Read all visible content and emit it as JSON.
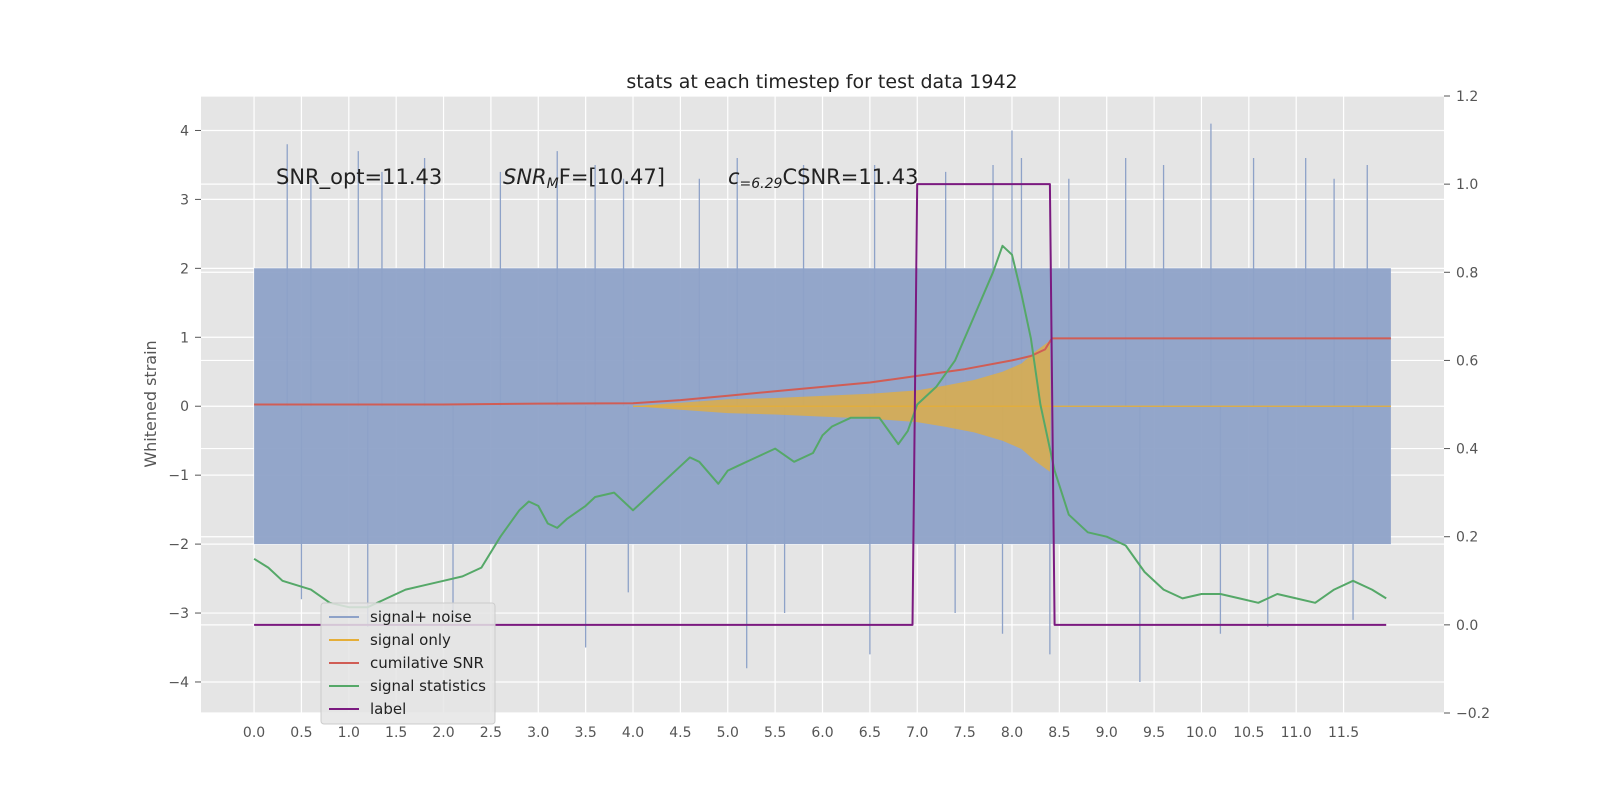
{
  "chart_data": {
    "type": "line",
    "title": "stats at each timestep for test data 1942",
    "xlabel": "",
    "ylabel": "Whitened strain",
    "y2label": "",
    "xlim": [
      -0.56,
      12.56
    ],
    "ylim": [
      -4.45,
      4.5
    ],
    "y2lim": [
      -0.2,
      1.2
    ],
    "xticks": [
      "0.0",
      "0.5",
      "1.0",
      "1.5",
      "2.0",
      "2.5",
      "3.0",
      "3.5",
      "4.0",
      "4.5",
      "5.0",
      "5.5",
      "6.0",
      "6.5",
      "7.0",
      "7.5",
      "8.0",
      "8.5",
      "9.0",
      "9.5",
      "10.0",
      "10.5",
      "11.0",
      "11.5"
    ],
    "yticks": [
      "4",
      "3",
      "2",
      "1",
      "0",
      "−1",
      "−2",
      "−3",
      "−4"
    ],
    "y2ticks": [
      "1.2",
      "1.0",
      "0.8",
      "0.6",
      "0.4",
      "0.2",
      "0.0",
      "−0.2"
    ],
    "grid": true,
    "legend_position": "lower-left",
    "annotations": [
      "SNR_opt=11.43",
      "SNR",
      "M",
      "F=[10.47]",
      "c",
      "=6.29",
      "CSNR=11.43"
    ],
    "series": [
      {
        "name": "signal+ noise",
        "color": "#8ea2c8",
        "envelope": {
          "x": [
            0.0,
            12.0
          ],
          "upper": [
            2.0,
            2.0
          ],
          "lower": [
            -2.0,
            -2.0
          ]
        },
        "spikes_x": [
          0.35,
          0.6,
          1.1,
          1.35,
          1.8,
          2.6,
          3.2,
          3.6,
          3.9,
          4.7,
          5.1,
          5.8,
          6.55,
          7.3,
          7.8,
          8.0,
          8.1,
          8.6,
          9.2,
          9.6,
          10.1,
          10.55,
          11.1,
          11.4,
          11.75
        ],
        "spikes_y": [
          3.8,
          3.3,
          3.7,
          3.4,
          3.6,
          3.4,
          3.7,
          3.5,
          3.3,
          3.3,
          3.6,
          3.5,
          3.5,
          3.4,
          3.5,
          4.0,
          3.6,
          3.3,
          3.6,
          3.5,
          4.1,
          3.6,
          3.6,
          3.3,
          3.5
        ],
        "dips_x": [
          0.5,
          1.2,
          2.1,
          3.5,
          3.95,
          5.2,
          5.6,
          6.5,
          7.4,
          7.9,
          8.4,
          9.35,
          10.2,
          10.7,
          11.6
        ],
        "dips_y": [
          -2.8,
          -3.2,
          -3.0,
          -3.5,
          -2.7,
          -3.8,
          -3.0,
          -3.6,
          -3.0,
          -3.3,
          -3.6,
          -4.0,
          -3.3,
          -3.2,
          -3.1
        ]
      },
      {
        "name": "signal only",
        "color": "#e5ae38",
        "envelope": {
          "x": [
            4.0,
            4.5,
            5.0,
            5.5,
            6.0,
            6.5,
            7.0,
            7.3,
            7.6,
            7.9,
            8.1,
            8.25,
            8.35,
            8.4,
            8.41,
            12.0
          ],
          "upper": [
            0.0,
            0.05,
            0.1,
            0.12,
            0.15,
            0.18,
            0.23,
            0.3,
            0.38,
            0.5,
            0.62,
            0.8,
            0.9,
            0.95,
            0.0,
            0.0
          ],
          "lower": [
            0.0,
            -0.05,
            -0.1,
            -0.12,
            -0.15,
            -0.18,
            -0.23,
            -0.3,
            -0.38,
            -0.5,
            -0.62,
            -0.8,
            -0.9,
            -0.95,
            0.0,
            0.0
          ]
        }
      },
      {
        "name": "cumilative SNR",
        "color": "#d05d55",
        "axis": "right",
        "x": [
          0.0,
          1.0,
          2.0,
          3.0,
          4.0,
          4.5,
          5.0,
          5.5,
          6.0,
          6.5,
          7.0,
          7.5,
          8.0,
          8.2,
          8.35,
          8.42,
          9.0,
          10.0,
          11.0,
          12.0
        ],
        "y": [
          0.5,
          0.5,
          0.5,
          0.502,
          0.503,
          0.51,
          0.52,
          0.53,
          0.54,
          0.55,
          0.565,
          0.58,
          0.6,
          0.61,
          0.625,
          0.65,
          0.65,
          0.65,
          0.65,
          0.65
        ]
      },
      {
        "name": "signal statistics",
        "color": "#55a868",
        "axis": "right",
        "x": [
          0.0,
          0.15,
          0.3,
          0.6,
          0.8,
          1.0,
          1.2,
          1.4,
          1.6,
          1.8,
          2.0,
          2.2,
          2.4,
          2.6,
          2.8,
          2.9,
          3.0,
          3.1,
          3.2,
          3.3,
          3.5,
          3.6,
          3.8,
          4.0,
          4.1,
          4.3,
          4.4,
          4.5,
          4.6,
          4.7,
          4.9,
          5.0,
          5.1,
          5.3,
          5.5,
          5.7,
          5.9,
          6.0,
          6.1,
          6.3,
          6.4,
          6.6,
          6.8,
          6.9,
          7.0,
          7.2,
          7.4,
          7.6,
          7.8,
          7.9,
          8.0,
          8.1,
          8.2,
          8.3,
          8.45,
          8.6,
          8.8,
          9.0,
          9.2,
          9.4,
          9.6,
          9.8,
          10.0,
          10.2,
          10.4,
          10.6,
          10.8,
          11.0,
          11.2,
          11.4,
          11.6,
          11.8,
          11.95
        ],
        "y": [
          0.15,
          0.13,
          0.1,
          0.08,
          0.05,
          0.04,
          0.04,
          0.06,
          0.08,
          0.09,
          0.1,
          0.11,
          0.13,
          0.2,
          0.26,
          0.28,
          0.27,
          0.23,
          0.22,
          0.24,
          0.27,
          0.29,
          0.3,
          0.26,
          0.28,
          0.32,
          0.34,
          0.36,
          0.38,
          0.37,
          0.32,
          0.35,
          0.36,
          0.38,
          0.4,
          0.37,
          0.39,
          0.43,
          0.45,
          0.47,
          0.47,
          0.47,
          0.41,
          0.44,
          0.5,
          0.54,
          0.6,
          0.7,
          0.8,
          0.86,
          0.84,
          0.75,
          0.65,
          0.5,
          0.35,
          0.25,
          0.21,
          0.2,
          0.18,
          0.12,
          0.08,
          0.06,
          0.07,
          0.07,
          0.06,
          0.05,
          0.07,
          0.06,
          0.05,
          0.08,
          0.1,
          0.08,
          0.06
        ]
      },
      {
        "name": "label",
        "color": "#7b1a80",
        "axis": "right",
        "x": [
          0.0,
          6.95,
          7.0,
          8.4,
          8.45,
          11.95
        ],
        "y": [
          0.0,
          0.0,
          1.0,
          1.0,
          0.0,
          0.0
        ]
      }
    ]
  },
  "legend": {
    "items": [
      {
        "label": "signal+ noise",
        "color": "#8ea2c8"
      },
      {
        "label": "signal only",
        "color": "#e5ae38"
      },
      {
        "label": "cumilative SNR",
        "color": "#d05d55"
      },
      {
        "label": "signal statistics",
        "color": "#55a868"
      },
      {
        "label": "label",
        "color": "#7b1a80"
      }
    ]
  },
  "colors": {
    "plot_bg": "#e5e5e5",
    "grid": "#ffffff"
  }
}
